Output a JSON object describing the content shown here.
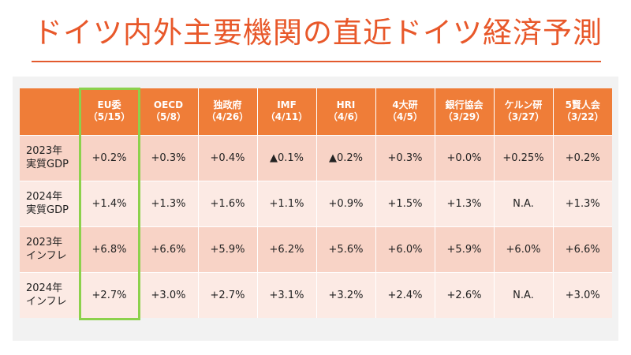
{
  "title": "ドイツ内外主要機関の直近ドイツ経済予測",
  "table": {
    "header_blank": "",
    "columns": [
      {
        "org": "EU委",
        "date": "（5/15）"
      },
      {
        "org": "OECD",
        "date": "（5/8）"
      },
      {
        "org": "独政府",
        "date": "（4/26）"
      },
      {
        "org": "IMF",
        "date": "（4/11）"
      },
      {
        "org": "HRI",
        "date": "（4/6）"
      },
      {
        "org": "4大研",
        "date": "（4/5）"
      },
      {
        "org": "銀行協会",
        "date": "（3/29）"
      },
      {
        "org": "ケルン研",
        "date": "（3/27）"
      },
      {
        "org": "5賢人会",
        "date": "（3/22）"
      }
    ],
    "rows": [
      {
        "label_line1": "2023年",
        "label_line2": "実質GDP",
        "values": [
          "+0.2%",
          "+0.3%",
          "+0.4%",
          "▲0.1%",
          "▲0.2%",
          "+0.3%",
          "+0.0%",
          "+0.25%",
          "+0.2%"
        ]
      },
      {
        "label_line1": "2024年",
        "label_line2": "実質GDP",
        "values": [
          "+1.4%",
          "+1.3%",
          "+1.6%",
          "+1.1%",
          "+0.9%",
          "+1.5%",
          "+1.3%",
          "N.A.",
          "+1.3%"
        ]
      },
      {
        "label_line1": "2023年",
        "label_line2": "インフレ",
        "values": [
          "+6.8%",
          "+6.6%",
          "+5.9%",
          "+6.2%",
          "+5.6%",
          "+6.0%",
          "+5.9%",
          "+6.0%",
          "+6.6%"
        ]
      },
      {
        "label_line1": "2024年",
        "label_line2": "インフレ",
        "values": [
          "+2.7%",
          "+3.0%",
          "+2.7%",
          "+3.1%",
          "+3.2%",
          "+2.4%",
          "+2.6%",
          "N.A.",
          "+3.0%"
        ]
      }
    ]
  },
  "colors": {
    "title": "#e8582a",
    "header_bg": "#ef7d38",
    "row_band_a": "#f8d3c6",
    "row_band_b": "#fceae4",
    "highlight": "#8cd14c"
  }
}
